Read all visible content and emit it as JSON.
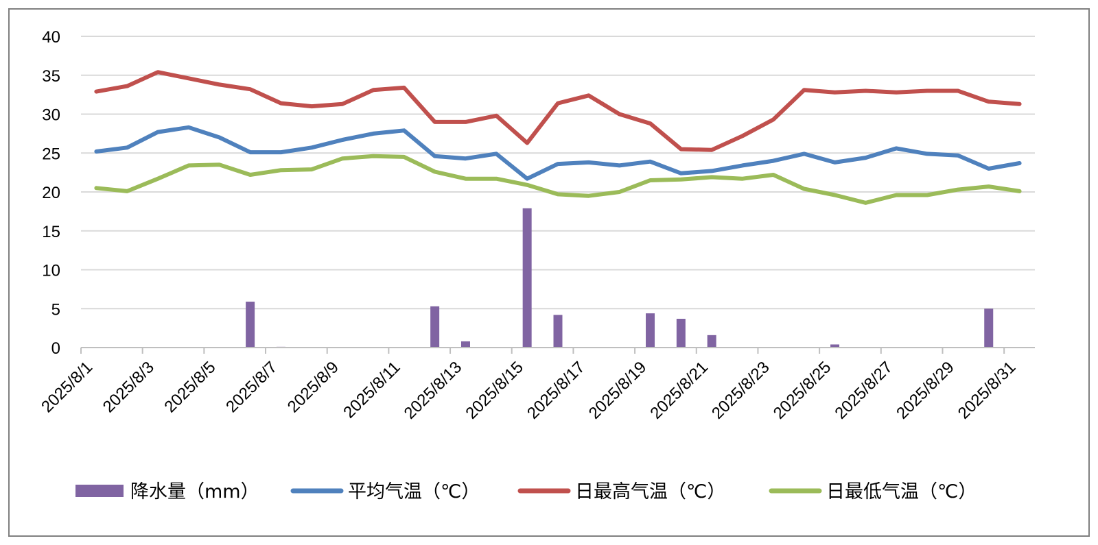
{
  "chart_data": {
    "type": "bar+line",
    "x": [
      "2025/8/1",
      "2025/8/2",
      "2025/8/3",
      "2025/8/4",
      "2025/8/5",
      "2025/8/6",
      "2025/8/7",
      "2025/8/8",
      "2025/8/9",
      "2025/8/10",
      "2025/8/11",
      "2025/8/12",
      "2025/8/13",
      "2025/8/14",
      "2025/8/15",
      "2025/8/16",
      "2025/8/17",
      "2025/8/18",
      "2025/8/19",
      "2025/8/20",
      "2025/8/21",
      "2025/8/22",
      "2025/8/23",
      "2025/8/24",
      "2025/8/25",
      "2025/8/26",
      "2025/8/27",
      "2025/8/28",
      "2025/8/29",
      "2025/8/30",
      "2025/8/31"
    ],
    "x_tick_labels": [
      "2025/8/1",
      "2025/8/3",
      "2025/8/5",
      "2025/8/7",
      "2025/8/9",
      "2025/8/11",
      "2025/8/13",
      "2025/8/15",
      "2025/8/17",
      "2025/8/19",
      "2025/8/21",
      "2025/8/23",
      "2025/8/25",
      "2025/8/27",
      "2025/8/29",
      "2025/8/31"
    ],
    "ylim": [
      0,
      40
    ],
    "y_ticks": [
      0,
      5,
      10,
      15,
      20,
      25,
      30,
      35,
      40
    ],
    "grid": true,
    "legend_position": "bottom",
    "series": [
      {
        "name": "降水量（mm）",
        "kind": "bar",
        "color": "#8064a2",
        "values": [
          0,
          0,
          0,
          0,
          0,
          5.9,
          0.1,
          0,
          0,
          0,
          0,
          5.3,
          0.8,
          0,
          17.9,
          4.2,
          0,
          0,
          4.4,
          3.7,
          1.6,
          0,
          0,
          0,
          0.4,
          0,
          0,
          0,
          0,
          5.0,
          0
        ]
      },
      {
        "name": "平均气温（℃）",
        "kind": "line",
        "color": "#4f81bd",
        "values": [
          25.2,
          25.7,
          27.7,
          28.3,
          27.0,
          25.1,
          25.1,
          25.7,
          26.7,
          27.5,
          27.9,
          24.6,
          24.3,
          24.9,
          21.7,
          23.6,
          23.8,
          23.4,
          23.9,
          22.4,
          22.7,
          23.4,
          24.0,
          24.9,
          23.8,
          24.4,
          25.6,
          24.9,
          24.7,
          23.0,
          23.7
        ]
      },
      {
        "name": "日最高气温（℃）",
        "kind": "line",
        "color": "#c0504d",
        "values": [
          32.9,
          33.6,
          35.4,
          34.6,
          33.8,
          33.2,
          31.4,
          31.0,
          31.3,
          33.1,
          33.4,
          29.0,
          29.0,
          29.8,
          26.3,
          31.4,
          32.4,
          30.0,
          28.8,
          25.5,
          25.4,
          27.2,
          29.3,
          33.1,
          32.8,
          33.0,
          32.8,
          33.0,
          33.0,
          31.6,
          31.3
        ]
      },
      {
        "name": "日最低气温（℃）",
        "kind": "line",
        "color": "#9bbb59",
        "values": [
          20.5,
          20.1,
          21.7,
          23.4,
          23.5,
          22.2,
          22.8,
          22.9,
          24.3,
          24.6,
          24.5,
          22.6,
          21.7,
          21.7,
          20.9,
          19.7,
          19.5,
          20.0,
          21.5,
          21.6,
          21.9,
          21.7,
          22.2,
          20.4,
          19.6,
          18.6,
          19.6,
          19.6,
          20.3,
          20.7,
          20.1
        ]
      }
    ]
  }
}
